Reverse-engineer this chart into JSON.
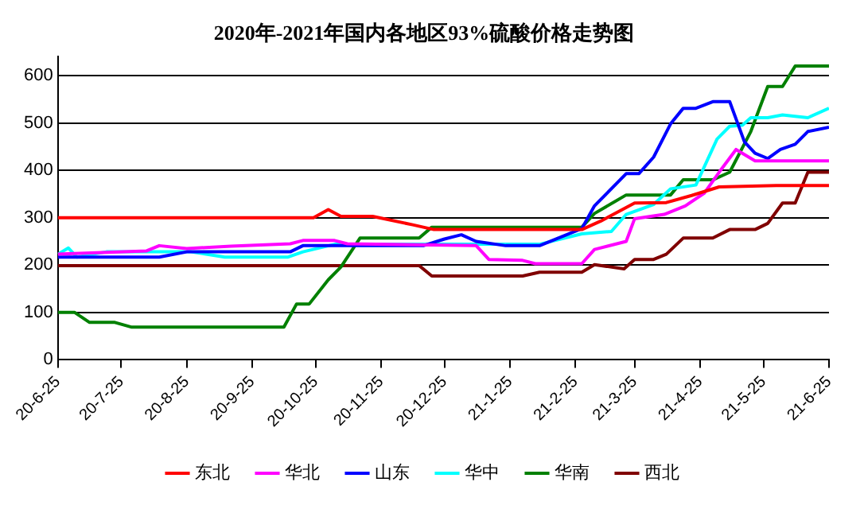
{
  "chart_data": {
    "type": "line",
    "title": "2020年-2021年国内各地区93%硫酸价格走势图",
    "xlim": [
      "2020-06-25",
      "2021-06-25"
    ],
    "xticks": [
      {
        "value": "2020-06-25",
        "label": "20-6-25"
      },
      {
        "value": "2020-07-25",
        "label": "20-7-25"
      },
      {
        "value": "2020-08-25",
        "label": "20-8-25"
      },
      {
        "value": "2020-09-25",
        "label": "20-9-25"
      },
      {
        "value": "2020-10-25",
        "label": "20-10-25"
      },
      {
        "value": "2020-11-25",
        "label": "20-11-25"
      },
      {
        "value": "2020-12-25",
        "label": "20-12-25"
      },
      {
        "value": "2021-01-25",
        "label": "21-1-25"
      },
      {
        "value": "2021-02-25",
        "label": "21-2-25"
      },
      {
        "value": "2021-03-25",
        "label": "21-3-25"
      },
      {
        "value": "2021-04-25",
        "label": "21-4-25"
      },
      {
        "value": "2021-05-25",
        "label": "21-5-25"
      },
      {
        "value": "2021-06-25",
        "label": "21-6-25"
      }
    ],
    "ylim": [
      0,
      640
    ],
    "yticks": [
      0,
      100,
      200,
      300,
      400,
      500,
      600
    ],
    "grid": "y",
    "legend": "bottom",
    "series": [
      {
        "name": "东北",
        "color": "#ff0000",
        "x": [
          "2020-06-25",
          "2020-10-24",
          "2020-10-31",
          "2020-11-06",
          "2020-11-21",
          "2020-12-10",
          "2020-12-20",
          "2021-02-28",
          "2021-03-09",
          "2021-03-25",
          "2021-04-09",
          "2021-04-21",
          "2021-05-04",
          "2021-05-31",
          "2021-06-25"
        ],
        "values": [
          300,
          300,
          317,
          303,
          303,
          285,
          275,
          275,
          293,
          331,
          332,
          347,
          365,
          368,
          368
        ]
      },
      {
        "name": "华北",
        "color": "#ff00ff",
        "x": [
          "2020-06-25",
          "2020-08-06",
          "2020-08-12",
          "2020-08-25",
          "2020-09-15",
          "2020-10-13",
          "2020-10-19",
          "2020-11-03",
          "2020-11-09",
          "2021-01-09",
          "2021-01-15",
          "2021-01-31",
          "2021-02-06",
          "2021-02-28",
          "2021-03-06",
          "2021-03-21",
          "2021-03-25",
          "2021-04-08",
          "2021-04-18",
          "2021-04-27",
          "2021-05-04",
          "2021-05-12",
          "2021-05-21",
          "2021-06-25"
        ],
        "values": [
          223,
          230,
          241,
          235,
          240,
          245,
          252,
          252,
          245,
          241,
          212,
          210,
          203,
          203,
          233,
          250,
          298,
          307,
          325,
          352,
          396,
          444,
          420,
          420
        ]
      },
      {
        "name": "山东",
        "color": "#0000ff",
        "x": [
          "2020-06-25",
          "2020-08-12",
          "2020-08-25",
          "2020-10-13",
          "2020-10-19",
          "2020-12-15",
          "2020-12-25",
          "2021-01-02",
          "2021-01-09",
          "2021-01-23",
          "2021-02-08",
          "2021-02-28",
          "2021-03-06",
          "2021-03-21",
          "2021-03-27",
          "2021-04-03",
          "2021-04-11",
          "2021-04-17",
          "2021-04-23",
          "2021-05-01",
          "2021-05-09",
          "2021-05-16",
          "2021-05-21",
          "2021-05-27",
          "2021-06-02",
          "2021-06-09",
          "2021-06-15",
          "2021-06-25"
        ],
        "values": [
          217,
          217,
          228,
          228,
          241,
          241,
          255,
          264,
          250,
          241,
          241,
          277,
          325,
          393,
          393,
          428,
          498,
          531,
          531,
          545,
          545,
          460,
          436,
          425,
          444,
          455,
          482,
          491
        ]
      },
      {
        "name": "华中",
        "color": "#00ffff",
        "x": [
          "2020-06-25",
          "2020-06-30",
          "2020-07-04",
          "2020-07-18",
          "2020-08-27",
          "2020-09-12",
          "2020-10-12",
          "2020-10-19",
          "2020-11-03",
          "2021-02-08",
          "2021-02-28",
          "2021-03-14",
          "2021-03-21",
          "2021-04-03",
          "2021-04-11",
          "2021-04-23",
          "2021-05-03",
          "2021-05-09",
          "2021-05-15",
          "2021-05-19",
          "2021-05-27",
          "2021-06-03",
          "2021-06-15",
          "2021-06-25"
        ],
        "values": [
          223,
          236,
          217,
          228,
          228,
          217,
          217,
          228,
          244,
          244,
          266,
          271,
          307,
          328,
          361,
          369,
          466,
          493,
          495,
          511,
          511,
          517,
          511,
          531
        ]
      },
      {
        "name": "华南",
        "color": "#008000",
        "x": [
          "2020-06-25",
          "2020-07-03",
          "2020-07-10",
          "2020-07-22",
          "2020-07-30",
          "2020-10-10",
          "2020-10-16",
          "2020-10-22",
          "2020-10-31",
          "2020-11-06",
          "2020-11-15",
          "2020-12-13",
          "2020-12-19",
          "2021-02-28",
          "2021-03-06",
          "2021-03-21",
          "2021-04-11",
          "2021-04-17",
          "2021-05-01",
          "2021-05-09",
          "2021-05-19",
          "2021-05-27",
          "2021-06-03",
          "2021-06-09",
          "2021-06-25"
        ],
        "values": [
          100,
          100,
          79,
          79,
          69,
          69,
          118,
          118,
          169,
          196,
          257,
          257,
          280,
          280,
          309,
          348,
          348,
          380,
          380,
          396,
          482,
          577,
          577,
          620,
          620
        ]
      },
      {
        "name": "西北",
        "color": "#800000",
        "x": [
          "2020-06-25",
          "2020-12-13",
          "2020-12-19",
          "2021-01-31",
          "2021-02-08",
          "2021-02-28",
          "2021-03-06",
          "2021-03-20",
          "2021-03-25",
          "2021-04-03",
          "2021-04-09",
          "2021-04-17",
          "2021-05-01",
          "2021-05-09",
          "2021-05-21",
          "2021-05-27",
          "2021-06-03",
          "2021-06-09",
          "2021-06-15",
          "2021-06-25"
        ],
        "values": [
          199,
          199,
          177,
          177,
          185,
          185,
          201,
          192,
          212,
          212,
          223,
          257,
          257,
          275,
          275,
          288,
          331,
          331,
          396,
          396
        ]
      }
    ]
  }
}
